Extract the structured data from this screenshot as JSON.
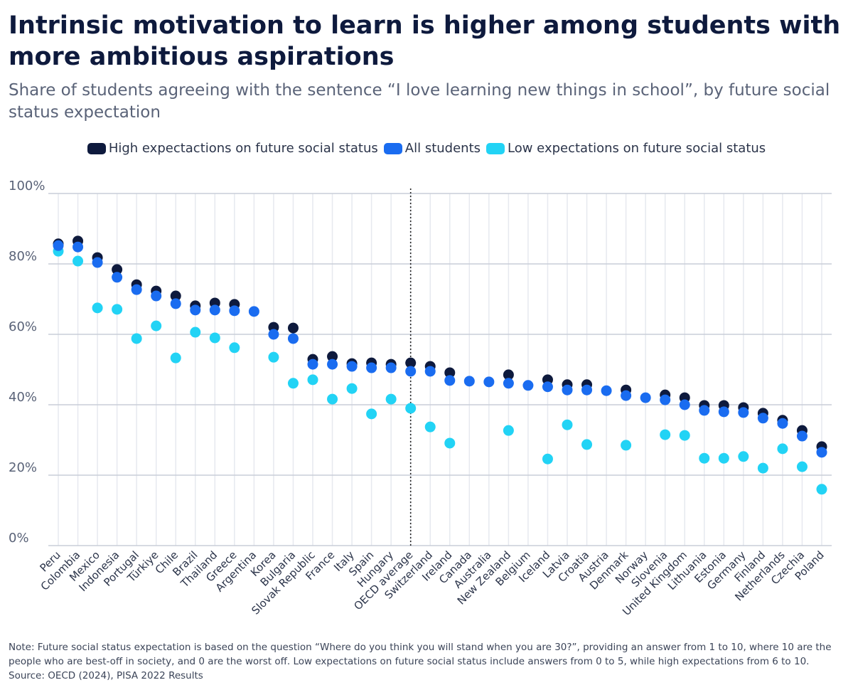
{
  "title": "Intrinsic motivation to learn is higher among students with more ambitious aspirations",
  "subtitle": "Share of students agreeing with the sentence “I love learning new things in school”, by future social status expectation",
  "note": "Note: Future social status expectation is based on the question “Where do you think you will stand when you are 30?”, providing an answer from 1 to 10, where 10 are the people who are best-off in society, and 0 are the worst off. Low expectations on future social status include answers from 0 to 5, while high expectations from 6 to 10. Source: OECD (2024), PISA 2022 Results",
  "chart_data": {
    "type": "scatter",
    "ylim": [
      0,
      100
    ],
    "yticks": [
      "0%",
      "20%",
      "40%",
      "60%",
      "80%",
      "100%"
    ],
    "ytick_values": [
      0,
      20,
      40,
      60,
      80,
      100
    ],
    "grid": true,
    "legend_placement": "top",
    "reference_category": "OECD average",
    "categories": [
      "Peru",
      "Colombia",
      "Mexico",
      "Indonesia",
      "Portugal",
      "Türkiye",
      "Chile",
      "Brazil",
      "Thailand",
      "Greece",
      "Argentina",
      "Korea",
      "Bulgaria",
      "Slovak Republic",
      "France",
      "Italy",
      "Spain",
      "Hungary",
      "OECD average",
      "Switzerland",
      "Ireland",
      "Canada",
      "Australia",
      "New Zealand",
      "Belgium",
      "Iceland",
      "Latvia",
      "Croatia",
      "Austria",
      "Denmark",
      "Norway",
      "Slovenia",
      "United Kingdom",
      "Lithuania",
      "Estonia",
      "Germany",
      "Finland",
      "Netherlands",
      "Czechia",
      "Poland"
    ],
    "series": [
      {
        "name": "High expectactions on future social status",
        "color": "#0e1a3d",
        "values": [
          85.7,
          86.5,
          81.8,
          78.4,
          74.1,
          72.3,
          70.9,
          68.1,
          68.9,
          68.5,
          null,
          62.0,
          61.8,
          52.9,
          53.7,
          51.7,
          51.9,
          51.5,
          51.9,
          50.9,
          49.1,
          null,
          null,
          48.5,
          null,
          47.1,
          45.7,
          45.7,
          null,
          44.2,
          null,
          42.8,
          42.0,
          39.8,
          39.8,
          39.2,
          37.6,
          35.6,
          32.7,
          28.1
        ]
      },
      {
        "name": "All students",
        "color": "#1a6cf0",
        "values": [
          85.2,
          84.8,
          80.4,
          76.2,
          72.7,
          70.9,
          68.7,
          66.9,
          66.9,
          66.7,
          66.5,
          60.0,
          58.8,
          51.5,
          51.5,
          50.9,
          50.5,
          50.5,
          49.5,
          49.5,
          46.9,
          46.7,
          46.5,
          46.1,
          45.5,
          45.1,
          44.2,
          44.2,
          44.0,
          42.6,
          42.0,
          41.4,
          40.0,
          38.4,
          38.0,
          37.8,
          36.2,
          34.7,
          31.1,
          26.5
        ]
      },
      {
        "name": "Low expectations on future social status",
        "color": "#22d3f5",
        "values": [
          83.6,
          80.8,
          67.5,
          67.1,
          58.8,
          62.4,
          53.3,
          60.6,
          59.0,
          56.2,
          null,
          53.5,
          46.1,
          47.1,
          41.6,
          44.6,
          37.4,
          41.6,
          39.0,
          33.7,
          29.1,
          null,
          null,
          32.7,
          null,
          24.6,
          34.3,
          28.7,
          null,
          28.5,
          null,
          31.5,
          31.3,
          24.8,
          24.8,
          25.3,
          22.0,
          27.5,
          22.4,
          16.0
        ]
      }
    ]
  }
}
